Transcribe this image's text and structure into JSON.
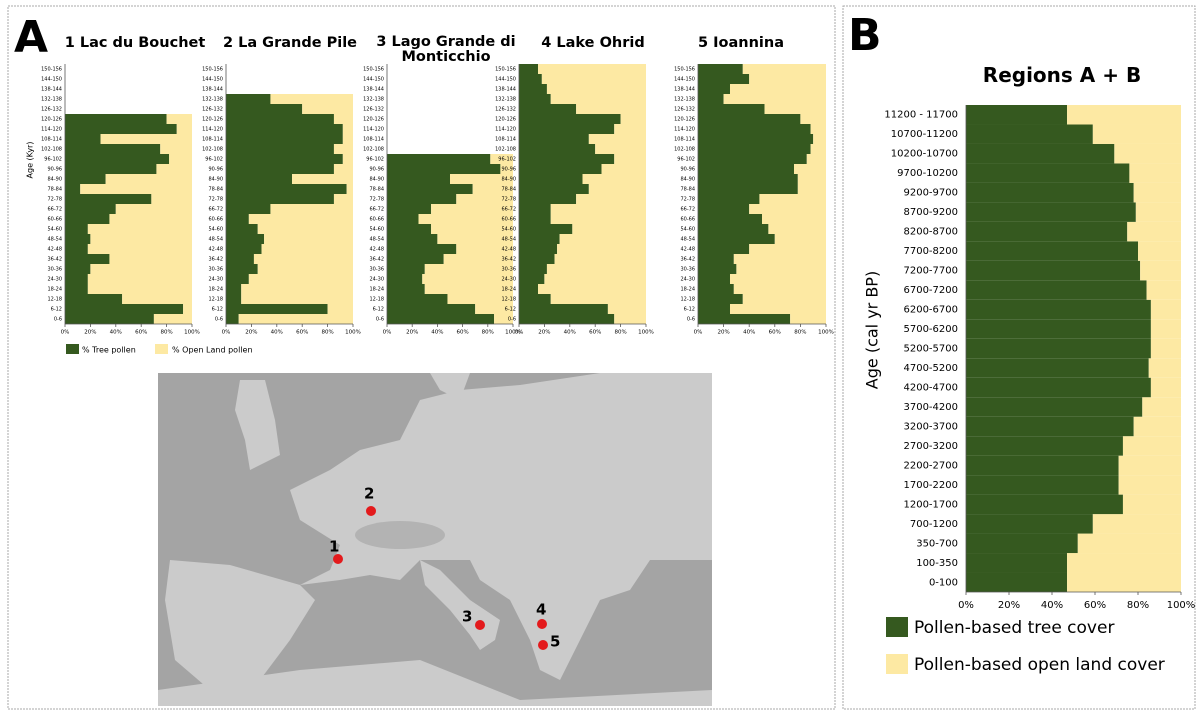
{
  "panels": {
    "a": "A",
    "b": "B"
  },
  "map": {
    "sites": [
      "1",
      "2",
      "3",
      "4",
      "5"
    ]
  },
  "chart_data": [
    {
      "type": "bar",
      "orientation": "horizontal",
      "stacked": true,
      "title": "1 Lac du Bouchet",
      "ylabel": "Age (Kyr)",
      "categories": [
        "0-6",
        "6-12",
        "12-18",
        "18-24",
        "24-30",
        "30-36",
        "36-42",
        "42-48",
        "48-54",
        "54-60",
        "60-66",
        "66-72",
        "72-78",
        "78-84",
        "84-90",
        "90-96",
        "96-102",
        "102-108",
        "108-114",
        "114-120",
        "120-126",
        "126-132",
        "132-138",
        "138-144",
        "144-150",
        "150-156"
      ],
      "series": [
        {
          "name": "% Tree pollen",
          "color": "#35591f",
          "values": [
            70,
            93,
            45,
            18,
            18,
            20,
            35,
            18,
            20,
            18,
            35,
            40,
            68,
            12,
            32,
            72,
            82,
            75,
            28,
            88,
            80,
            null,
            null,
            null,
            null,
            null
          ]
        },
        {
          "name": "% Open Land pollen",
          "color": "#fde9a3",
          "values": [
            30,
            7,
            55,
            82,
            82,
            80,
            65,
            82,
            80,
            82,
            65,
            60,
            32,
            88,
            68,
            28,
            18,
            25,
            72,
            12,
            20,
            null,
            null,
            null,
            null,
            null
          ]
        }
      ],
      "xlim": [
        0,
        100
      ],
      "xticks": [
        {
          "value": 0,
          "label": "0%"
        },
        {
          "value": 20,
          "label": "20%"
        },
        {
          "value": 40,
          "label": "40%"
        },
        {
          "value": 60,
          "label": "60%"
        },
        {
          "value": 80,
          "label": "80%"
        },
        {
          "value": 100,
          "label": "100%"
        }
      ]
    },
    {
      "type": "bar",
      "orientation": "horizontal",
      "stacked": true,
      "title": "2 La Grande Pile",
      "categories": [
        "0-6",
        "6-12",
        "12-18",
        "18-24",
        "24-30",
        "30-36",
        "36-42",
        "42-48",
        "48-54",
        "54-60",
        "60-66",
        "66-72",
        "72-78",
        "78-84",
        "84-90",
        "90-96",
        "96-102",
        "102-108",
        "108-114",
        "114-120",
        "120-126",
        "126-132",
        "132-138",
        "138-144",
        "144-150",
        "150-156"
      ],
      "series": [
        {
          "color": "#35591f",
          "values": [
            10,
            80,
            12,
            12,
            18,
            25,
            22,
            28,
            30,
            25,
            18,
            35,
            85,
            95,
            52,
            85,
            92,
            85,
            92,
            92,
            85,
            60,
            35,
            null,
            null,
            null
          ]
        },
        {
          "color": "#fde9a3",
          "values": [
            90,
            20,
            88,
            88,
            82,
            75,
            78,
            72,
            70,
            75,
            82,
            65,
            15,
            5,
            48,
            15,
            8,
            15,
            8,
            8,
            15,
            40,
            65,
            null,
            null,
            null
          ]
        }
      ],
      "xlim": [
        0,
        100
      ],
      "xticks": [
        {
          "value": 0,
          "label": "0%"
        },
        {
          "value": 20,
          "label": "20%"
        },
        {
          "value": 40,
          "label": "40%"
        },
        {
          "value": 60,
          "label": "60%"
        },
        {
          "value": 80,
          "label": "80%"
        },
        {
          "value": 100,
          "label": "100%"
        }
      ]
    },
    {
      "type": "bar",
      "orientation": "horizontal",
      "stacked": true,
      "title": "3 Lago Grande di Monticchio",
      "categories": [
        "0-6",
        "6-12",
        "12-18",
        "18-24",
        "24-30",
        "30-36",
        "36-42",
        "42-48",
        "48-54",
        "54-60",
        "60-66",
        "66-72",
        "72-78",
        "78-84",
        "84-90",
        "90-96",
        "96-102",
        "102-108",
        "108-114",
        "114-120",
        "120-126",
        "126-132",
        "132-138",
        "138-144",
        "144-150",
        "150-156"
      ],
      "series": [
        {
          "color": "#35591f",
          "values": [
            85,
            70,
            48,
            30,
            28,
            30,
            45,
            55,
            40,
            35,
            25,
            35,
            55,
            68,
            50,
            90,
            82,
            null,
            null,
            null,
            null,
            null,
            null,
            null,
            null,
            null
          ]
        },
        {
          "color": "#fde9a3",
          "values": [
            15,
            30,
            52,
            70,
            72,
            70,
            55,
            45,
            60,
            65,
            75,
            65,
            45,
            32,
            50,
            10,
            18,
            null,
            null,
            null,
            null,
            null,
            null,
            null,
            null,
            null
          ]
        }
      ],
      "xlim": [
        0,
        100
      ],
      "xticks": [
        {
          "value": 0,
          "label": "0%"
        },
        {
          "value": 20,
          "label": "20%"
        },
        {
          "value": 40,
          "label": "40%"
        },
        {
          "value": 60,
          "label": "60%"
        },
        {
          "value": 80,
          "label": "80%"
        },
        {
          "value": 100,
          "label": "100%"
        }
      ]
    },
    {
      "type": "bar",
      "orientation": "horizontal",
      "stacked": true,
      "title": "4 Lake Ohrid",
      "categories": [
        "0-6",
        "6-12",
        "12-18",
        "18-24",
        "24-30",
        "30-36",
        "36-42",
        "42-48",
        "48-54",
        "54-60",
        "60-66",
        "66-72",
        "72-78",
        "78-84",
        "84-90",
        "90-96",
        "96-102",
        "102-108",
        "108-114",
        "114-120",
        "120-126",
        "126-132",
        "132-138",
        "138-144",
        "144-150",
        "150-156"
      ],
      "series": [
        {
          "color": "#35591f",
          "values": [
            75,
            70,
            25,
            15,
            20,
            22,
            28,
            30,
            32,
            42,
            25,
            25,
            45,
            55,
            50,
            65,
            75,
            60,
            55,
            75,
            80,
            45,
            25,
            22,
            18,
            15
          ]
        },
        {
          "color": "#fde9a3",
          "values": [
            25,
            30,
            75,
            85,
            80,
            78,
            72,
            70,
            68,
            58,
            75,
            75,
            55,
            45,
            50,
            35,
            25,
            40,
            45,
            25,
            20,
            55,
            75,
            78,
            82,
            85
          ]
        }
      ],
      "xlim": [
        0,
        100
      ],
      "xticks": [
        {
          "value": 0,
          "label": "0%"
        },
        {
          "value": 20,
          "label": "20%"
        },
        {
          "value": 40,
          "label": "40%"
        },
        {
          "value": 60,
          "label": "60%"
        },
        {
          "value": 80,
          "label": "80%"
        },
        {
          "value": 100,
          "label": "100%"
        }
      ]
    },
    {
      "type": "bar",
      "orientation": "horizontal",
      "stacked": true,
      "title": "5 Ioannina",
      "categories": [
        "0-6",
        "6-12",
        "12-18",
        "18-24",
        "24-30",
        "30-36",
        "36-42",
        "42-48",
        "48-54",
        "54-60",
        "60-66",
        "66-72",
        "72-78",
        "78-84",
        "84-90",
        "90-96",
        "96-102",
        "102-108",
        "108-114",
        "114-120",
        "120-126",
        "126-132",
        "132-138",
        "138-144",
        "144-150",
        "150-156"
      ],
      "series": [
        {
          "color": "#35591f",
          "values": [
            72,
            25,
            35,
            28,
            25,
            30,
            28,
            40,
            60,
            55,
            50,
            40,
            48,
            78,
            78,
            75,
            85,
            88,
            90,
            88,
            80,
            52,
            20,
            25,
            40,
            35
          ]
        },
        {
          "color": "#fde9a3",
          "values": [
            28,
            75,
            65,
            72,
            75,
            70,
            72,
            60,
            40,
            45,
            50,
            60,
            52,
            22,
            22,
            25,
            15,
            12,
            10,
            12,
            20,
            48,
            80,
            75,
            60,
            65
          ]
        }
      ],
      "xlim": [
        0,
        100
      ],
      "xticks": [
        {
          "value": 0,
          "label": "0%"
        },
        {
          "value": 20,
          "label": "20%"
        },
        {
          "value": 40,
          "label": "40%"
        },
        {
          "value": 60,
          "label": "60%"
        },
        {
          "value": 80,
          "label": "80%"
        },
        {
          "value": 100,
          "label": "100%"
        }
      ]
    },
    {
      "type": "bar",
      "orientation": "horizontal",
      "stacked": true,
      "title": "Regions A + B",
      "ylabel": "Age (cal yr BP)",
      "categories": [
        "0-100",
        "100-350",
        "350-700",
        "700-1200",
        "1200-1700",
        "1700-2200",
        "2200-2700",
        "2700-3200",
        "3200-3700",
        "3700-4200",
        "4200-4700",
        "4700-5200",
        "5200-5700",
        "5700-6200",
        "6200-6700",
        "6700-7200",
        "7200-7700",
        "7700-8200",
        "8200-8700",
        "8700-9200",
        "9200-9700",
        "9700-10200",
        "10200-10700",
        "10700-11200",
        "11200 - 11700"
      ],
      "series": [
        {
          "name": "Pollen-based tree cover",
          "color": "#35591f",
          "values": [
            47,
            47,
            52,
            59,
            73,
            71,
            71,
            73,
            78,
            82,
            86,
            85,
            86,
            86,
            86,
            84,
            81,
            80,
            75,
            79,
            78,
            76,
            69,
            59,
            47
          ]
        },
        {
          "name": "Pollen-based open land cover",
          "color": "#fde9a3",
          "values": [
            53,
            53,
            48,
            41,
            27,
            29,
            29,
            27,
            22,
            18,
            14,
            15,
            14,
            14,
            14,
            16,
            19,
            20,
            25,
            21,
            22,
            24,
            31,
            41,
            53
          ]
        }
      ],
      "xlim": [
        0,
        100
      ],
      "xticks": [
        {
          "value": 0,
          "label": "0%"
        },
        {
          "value": 20,
          "label": "20%"
        },
        {
          "value": 40,
          "label": "40%"
        },
        {
          "value": 60,
          "label": "60%"
        },
        {
          "value": 80,
          "label": "80%"
        },
        {
          "value": 100,
          "label": "100%"
        }
      ]
    }
  ]
}
